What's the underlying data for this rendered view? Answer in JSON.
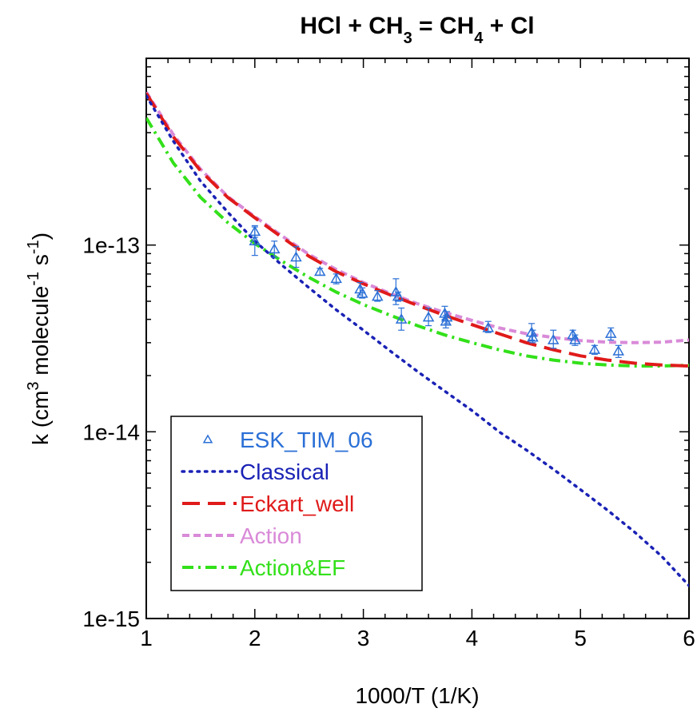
{
  "chart_data": {
    "type": "line",
    "title": {
      "main": "HCl + CH",
      "sub1": "3",
      "mid": " = CH",
      "sub2": "4",
      "end": " + Cl"
    },
    "xlabel": "1000/T (1/K)",
    "ylabel": {
      "pre": "k (cm",
      "sup1": "3",
      "mid": " molecule",
      "sup2": "-1",
      "mid2": " s",
      "sup3": "-1",
      "post": ")"
    },
    "xlim": [
      1,
      6
    ],
    "ylim": [
      1e-15,
      1e-12
    ],
    "yscale": "log",
    "x_ticks": [
      1,
      2,
      3,
      4,
      5,
      6
    ],
    "x_tick_labels": [
      "1",
      "2",
      "3",
      "4",
      "5",
      "6"
    ],
    "y_ticks": [
      1e-15,
      1e-14,
      1e-13
    ],
    "y_tick_labels": [
      "1e-15",
      "1e-14",
      "1e-13"
    ],
    "legend_position": "bottom-left",
    "series": [
      {
        "name": "ESK_TIM_06",
        "kind": "points",
        "color": "#2a6fd6",
        "marker": "triangle-open",
        "points": [
          {
            "x": 2.0,
            "y": 1.05e-13,
            "lo": 8.8e-14,
            "hi": 1.25e-13
          },
          {
            "x": 2.0,
            "y": 1.18e-13,
            "lo": 1.1e-13,
            "hi": 1.27e-13
          },
          {
            "x": 2.18,
            "y": 9.5e-14,
            "lo": 8.6e-14,
            "hi": 1.05e-13
          },
          {
            "x": 2.38,
            "y": 8.6e-14,
            "lo": 7.6e-14,
            "hi": 9.8e-14
          },
          {
            "x": 2.6,
            "y": 7.2e-14,
            "lo": 6.9e-14,
            "hi": 7.5e-14
          },
          {
            "x": 2.75,
            "y": 6.6e-14,
            "lo": 6.2e-14,
            "hi": 7e-14
          },
          {
            "x": 2.97,
            "y": 5.8e-14,
            "lo": 5.4e-14,
            "hi": 6.3e-14
          },
          {
            "x": 2.99,
            "y": 5.5e-14,
            "lo": 5.2e-14,
            "hi": 5.9e-14
          },
          {
            "x": 3.13,
            "y": 5.3e-14,
            "lo": 5e-14,
            "hi": 5.7e-14
          },
          {
            "x": 3.3,
            "y": 5.6e-14,
            "lo": 4.8e-14,
            "hi": 6.6e-14
          },
          {
            "x": 3.32,
            "y": 5.3e-14,
            "lo": 5e-14,
            "hi": 5.6e-14
          },
          {
            "x": 3.35,
            "y": 4e-14,
            "lo": 3.5e-14,
            "hi": 4.6e-14
          },
          {
            "x": 3.6,
            "y": 4.1e-14,
            "lo": 3.7e-14,
            "hi": 4.6e-14
          },
          {
            "x": 3.75,
            "y": 4.3e-14,
            "lo": 4e-14,
            "hi": 4.7e-14
          },
          {
            "x": 3.76,
            "y": 3.9e-14,
            "lo": 3.6e-14,
            "hi": 4.2e-14
          },
          {
            "x": 3.77,
            "y": 4.1e-14,
            "lo": 3.8e-14,
            "hi": 4.4e-14
          },
          {
            "x": 4.15,
            "y": 3.6e-14,
            "lo": 3.4e-14,
            "hi": 3.9e-14
          },
          {
            "x": 4.55,
            "y": 3.4e-14,
            "lo": 3.1e-14,
            "hi": 3.8e-14
          },
          {
            "x": 4.56,
            "y": 3.2e-14,
            "lo": 3e-14,
            "hi": 3.5e-14
          },
          {
            "x": 4.75,
            "y": 3.1e-14,
            "lo": 2.8e-14,
            "hi": 3.5e-14
          },
          {
            "x": 4.93,
            "y": 3.3e-14,
            "lo": 3.1e-14,
            "hi": 3.5e-14
          },
          {
            "x": 4.95,
            "y": 3.1e-14,
            "lo": 2.9e-14,
            "hi": 3.3e-14
          },
          {
            "x": 5.13,
            "y": 2.75e-14,
            "lo": 2.6e-14,
            "hi": 2.9e-14
          },
          {
            "x": 5.28,
            "y": 3.35e-14,
            "lo": 3.1e-14,
            "hi": 3.6e-14
          },
          {
            "x": 5.35,
            "y": 2.7e-14,
            "lo": 2.5e-14,
            "hi": 2.9e-14
          }
        ]
      },
      {
        "name": "Classical",
        "kind": "line",
        "color": "#1a22b5",
        "dash": "dotted",
        "x": [
          1.0,
          1.25,
          1.5,
          1.75,
          2.0,
          2.25,
          2.5,
          2.75,
          3.0,
          3.25,
          3.5,
          3.75,
          4.0,
          4.25,
          4.5,
          4.75,
          5.0,
          5.25,
          5.5,
          5.75,
          6.0
        ],
        "y": [
          6.3e-13,
          3.6e-13,
          2.2e-13,
          1.5e-13,
          1.05e-13,
          7.8e-14,
          5.9e-14,
          4.5e-14,
          3.5e-14,
          2.7e-14,
          2.1e-14,
          1.65e-14,
          1.3e-14,
          1e-14,
          8e-15,
          6.3e-15,
          4.9e-15,
          3.8e-15,
          2.9e-15,
          2.15e-15,
          1.5e-15
        ]
      },
      {
        "name": "Eckart_well",
        "kind": "line",
        "color": "#e01a1a",
        "dash": "long-dash",
        "x": [
          1.0,
          1.25,
          1.5,
          1.75,
          2.0,
          2.25,
          2.5,
          2.75,
          3.0,
          3.25,
          3.5,
          3.75,
          4.0,
          4.25,
          4.5,
          4.75,
          5.0,
          5.25,
          5.5,
          5.75,
          6.0
        ],
        "y": [
          6.5e-13,
          3.8e-13,
          2.5e-13,
          1.8e-13,
          1.4e-13,
          1.1e-13,
          8.7e-14,
          7.2e-14,
          6.2e-14,
          5.4e-14,
          4.75e-14,
          4.2e-14,
          3.75e-14,
          3.35e-14,
          3e-14,
          2.75e-14,
          2.55e-14,
          2.42e-14,
          2.33e-14,
          2.28e-14,
          2.25e-14
        ]
      },
      {
        "name": "Action",
        "kind": "line",
        "color": "#d98ad8",
        "dash": "short-dash",
        "x": [
          1.0,
          1.25,
          1.5,
          1.75,
          2.0,
          2.25,
          2.5,
          2.75,
          3.0,
          3.25,
          3.5,
          3.75,
          4.0,
          4.25,
          4.5,
          4.75,
          5.0,
          5.25,
          5.5,
          5.75,
          6.0
        ],
        "y": [
          6.6e-13,
          3.9e-13,
          2.55e-13,
          1.82e-13,
          1.42e-13,
          1.12e-13,
          8.9e-14,
          7.4e-14,
          6.3e-14,
          5.5e-14,
          4.85e-14,
          4.35e-14,
          3.95e-14,
          3.6e-14,
          3.35e-14,
          3.2e-14,
          3.08e-14,
          3.02e-14,
          3e-14,
          3.02e-14,
          3.1e-14
        ]
      },
      {
        "name": "Action&EF",
        "kind": "line",
        "color": "#33e01a",
        "dash": "dash-dot",
        "x": [
          1.0,
          1.25,
          1.5,
          1.75,
          2.0,
          2.25,
          2.5,
          2.75,
          3.0,
          3.25,
          3.5,
          3.75,
          4.0,
          4.25,
          4.5,
          4.75,
          5.0,
          5.25,
          5.5,
          5.75,
          6.0
        ],
        "y": [
          4.8e-13,
          2.75e-13,
          1.8e-13,
          1.32e-13,
          1.02e-13,
          8.2e-14,
          6.7e-14,
          5.6e-14,
          4.8e-14,
          4.2e-14,
          3.7e-14,
          3.3e-14,
          3e-14,
          2.75e-14,
          2.55e-14,
          2.42e-14,
          2.33e-14,
          2.28e-14,
          2.25e-14,
          2.25e-14,
          2.27e-14
        ]
      }
    ]
  }
}
